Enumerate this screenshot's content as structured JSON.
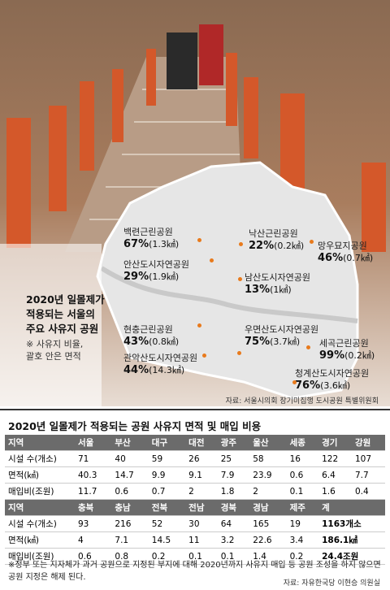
{
  "map": {
    "title": [
      "2020년 일몰제가",
      "적용되는 서울의",
      "주요 사유지 공원"
    ],
    "note": [
      "※ 사유지 비율,",
      "괄호 안은 면적"
    ],
    "parks": [
      {
        "name": "백련근린공원",
        "pct": "67%",
        "area": "(1.3㎢)"
      },
      {
        "name": "낙산근린공원",
        "pct": "22%",
        "area": "(0.2㎢)"
      },
      {
        "name": "망우묘지공원",
        "pct": "46%",
        "area": "(0.7㎢)"
      },
      {
        "name": "안산도시자연공원",
        "pct": "29%",
        "area": "(1.9㎢)"
      },
      {
        "name": "남산도시자연공원",
        "pct": "13%",
        "area": "(1㎢)"
      },
      {
        "name": "현충근린공원",
        "pct": "43%",
        "area": "(0.8㎢)"
      },
      {
        "name": "우면산도시자연공원",
        "pct": "75%",
        "area": "(3.7㎢)"
      },
      {
        "name": "세곡근린공원",
        "pct": "99%",
        "area": "(0.2㎢)"
      },
      {
        "name": "관악산도시자연공원",
        "pct": "44%",
        "area": "(14.3㎢)"
      },
      {
        "name": "청계산도시자연공원",
        "pct": "76%",
        "area": "(3.6㎢)"
      }
    ],
    "source": "자료: 서울시의회 장기미집행 도시공원 특별위원회"
  },
  "table": {
    "title": "2020년 일몰제가 적용되는 공원 사유지 면적 및 매입 비용",
    "rows": [
      [
        "지역",
        "서울",
        "부산",
        "대구",
        "대전",
        "광주",
        "울산",
        "세종",
        "경기",
        "강원"
      ],
      [
        "시설 수(개소)",
        "71",
        "40",
        "59",
        "26",
        "25",
        "58",
        "16",
        "122",
        "107"
      ],
      [
        "면적(㎢)",
        "40.3",
        "14.7",
        "9.9",
        "9.1",
        "7.9",
        "23.9",
        "0.6",
        "6.4",
        "7.7"
      ],
      [
        "매입비(조원)",
        "11.7",
        "0.6",
        "0.7",
        "2",
        "1.8",
        "2",
        "0.1",
        "1.6",
        "0.4"
      ],
      [
        "지역",
        "충북",
        "충남",
        "전북",
        "전남",
        "경북",
        "경남",
        "제주",
        "계"
      ],
      [
        "시설 수(개소)",
        "93",
        "216",
        "52",
        "30",
        "64",
        "165",
        "19",
        "1163개소"
      ],
      [
        "면적(㎢)",
        "4",
        "7.1",
        "14.5",
        "11",
        "3.2",
        "22.6",
        "3.4",
        "186.1㎢"
      ],
      [
        "매입비(조원)",
        "0.6",
        "0.8",
        "0.2",
        "0.1",
        "0.1",
        "1.4",
        "0.2",
        "24.4조원"
      ]
    ]
  },
  "footnote": "※정부 또는 지자체가 과거 공원으로 지정된 부지에 대해 2020년까지 사유지 매입 등 공원 조성을 하지 않으면 공원 지정은 해제 된다.",
  "credit": "자료: 자유한국당 이현승 의원실"
}
